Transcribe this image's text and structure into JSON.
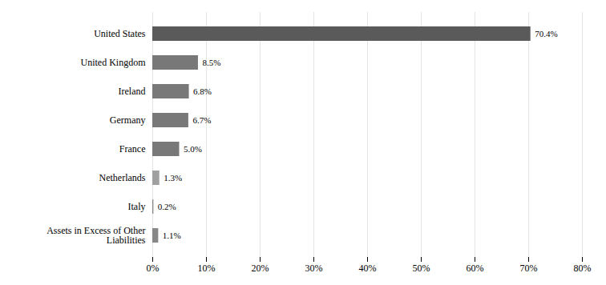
{
  "chart_data": {
    "type": "bar",
    "orientation": "horizontal",
    "categories": [
      "Assets in Excess of Other\nLiabilities",
      "Italy",
      "Netherlands",
      "France",
      "Germany",
      "Ireland",
      "United Kingdom",
      "United States"
    ],
    "values": [
      1.1,
      0.2,
      1.3,
      5.0,
      6.7,
      6.8,
      8.5,
      70.4
    ],
    "value_labels": [
      "1.1%",
      "0.2%",
      "1.3%",
      "5.0%",
      "6.7%",
      "6.8%",
      "8.5%",
      "70.4%"
    ],
    "data_labels": true,
    "colors": [
      "#888888",
      "#888888",
      "#a0a0a0",
      "#787878",
      "#787878",
      "#787878",
      "#787878",
      "#5a5a5a"
    ],
    "xlim": [
      0,
      80
    ],
    "xticks": [
      {
        "value": 0,
        "label": "0%"
      },
      {
        "value": 10,
        "label": "10%"
      },
      {
        "value": 20,
        "label": "20%"
      },
      {
        "value": 30,
        "label": "30%"
      },
      {
        "value": 40,
        "label": "40%"
      },
      {
        "value": 50,
        "label": "50%"
      },
      {
        "value": 60,
        "label": "60%"
      },
      {
        "value": 70,
        "label": "70%"
      },
      {
        "value": 80,
        "label": "80%"
      }
    ],
    "grid": true
  }
}
